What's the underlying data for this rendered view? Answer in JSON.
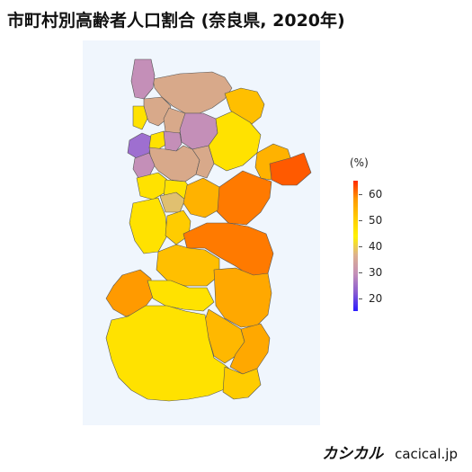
{
  "title": "市町村別高齢者人口割合 (奈良県, 2020年)",
  "legend": {
    "unit": "(%)",
    "min": 15,
    "max": 65,
    "ticks": [
      {
        "value": 60,
        "label": "60"
      },
      {
        "value": 50,
        "label": "50"
      },
      {
        "value": 40,
        "label": "40"
      },
      {
        "value": 30,
        "label": "30"
      },
      {
        "value": 20,
        "label": "20"
      }
    ],
    "gradient": [
      "#2b1bff",
      "#8a5cd0",
      "#c48fb8",
      "#ddb08e",
      "#fff200",
      "#ffcc00",
      "#ff9a00",
      "#ff2a00"
    ]
  },
  "map": {
    "background": "#f0f6fd",
    "border_color": "#555555"
  },
  "brand": {
    "logo": "カシカル",
    "site": "cacical.jp"
  }
}
